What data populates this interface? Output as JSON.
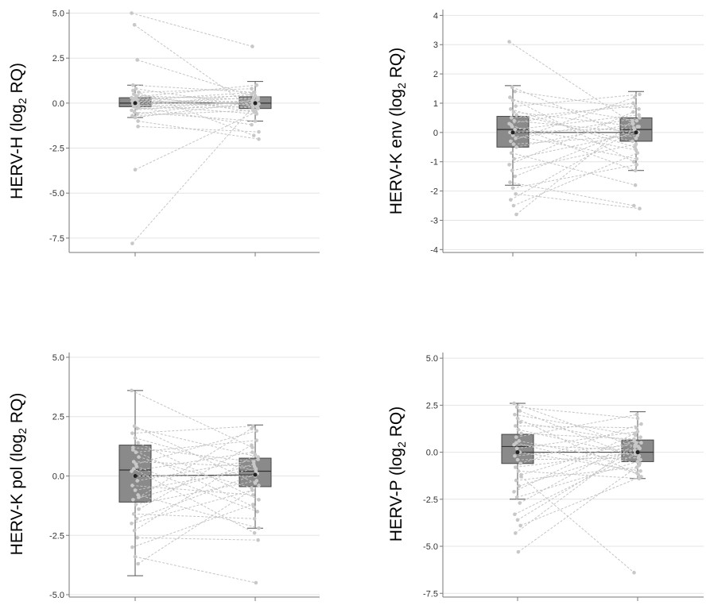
{
  "colors": {
    "box_fill": "#8a8a8a",
    "box_stroke": "#444444",
    "point": "#c8c8c8",
    "line": "#c4c4c4",
    "whisker": "#555555",
    "grid": "#e4e4e4",
    "axis": "#777777"
  },
  "chart_data": [
    {
      "type": "box",
      "ylabel": {
        "main": "HERV-H (log",
        "sub": "2",
        "tail": " RQ)"
      },
      "ylim": [
        -8.3,
        5.2
      ],
      "yticks": [
        5.0,
        2.5,
        0.0,
        -2.5,
        -5.0,
        -7.5
      ],
      "tick_labels": [
        "5.0",
        "2.5",
        "0.0",
        "-2.5",
        "-5.0",
        "-7.5"
      ],
      "groups": [
        {
          "q1": -0.2,
          "median": 0.0,
          "q3": 0.3,
          "wlo": -0.8,
          "whi": 1.0,
          "mean": 0.0
        },
        {
          "q1": -0.3,
          "median": 0.0,
          "q3": 0.35,
          "wlo": -1.0,
          "whi": 1.2,
          "mean": 0.0
        }
      ],
      "pairs": [
        [
          5.0,
          3.15
        ],
        [
          4.35,
          -0.4
        ],
        [
          2.4,
          0.3
        ],
        [
          -7.8,
          -0.2
        ],
        [
          -3.7,
          -0.5
        ],
        [
          -1.3,
          -1.6
        ],
        [
          1.0,
          0.6
        ],
        [
          0.8,
          -0.2
        ],
        [
          0.6,
          0.8
        ],
        [
          0.5,
          -0.5
        ],
        [
          0.4,
          0.2
        ],
        [
          0.3,
          -0.1
        ],
        [
          0.25,
          0.4
        ],
        [
          0.2,
          -0.3
        ],
        [
          0.1,
          0.0
        ],
        [
          0.05,
          0.1
        ],
        [
          0.0,
          -0.05
        ],
        [
          -0.05,
          0.3
        ],
        [
          -0.1,
          -0.6
        ],
        [
          -0.15,
          0.5
        ],
        [
          -0.2,
          0.05
        ],
        [
          -0.3,
          -0.2
        ],
        [
          -0.4,
          0.15
        ],
        [
          -0.5,
          -1.0
        ],
        [
          -0.6,
          0.2
        ],
        [
          -0.7,
          -0.4
        ],
        [
          -0.8,
          0.05
        ],
        [
          -1.0,
          -2.0
        ],
        [
          0.7,
          -1.8
        ],
        [
          0.35,
          1.0
        ],
        [
          -0.25,
          -1.2
        ],
        [
          0.15,
          0.6
        ]
      ]
    },
    {
      "type": "box",
      "ylabel": {
        "main": "HERV-K env (log",
        "sub": "2",
        "tail": " RQ)"
      },
      "ylim": [
        -4.1,
        4.2
      ],
      "yticks": [
        4,
        3,
        2,
        1,
        0,
        -1,
        -2,
        -3,
        -4
      ],
      "tick_labels": [
        "4",
        "3",
        "2",
        "1",
        "0",
        "-1",
        "-2",
        "-3",
        "-4"
      ],
      "groups": [
        {
          "q1": -0.5,
          "median": 0.1,
          "q3": 0.55,
          "wlo": -1.8,
          "whi": 1.6,
          "mean": 0.0
        },
        {
          "q1": -0.3,
          "median": 0.1,
          "q3": 0.5,
          "wlo": -1.3,
          "whi": 1.4,
          "mean": 0.0
        }
      ],
      "pairs": [
        [
          3.1,
          0.3
        ],
        [
          1.55,
          -0.2
        ],
        [
          1.4,
          0.8
        ],
        [
          1.2,
          -1.0
        ],
        [
          1.1,
          0.4
        ],
        [
          0.9,
          1.3
        ],
        [
          0.8,
          -0.5
        ],
        [
          0.7,
          0.2
        ],
        [
          0.6,
          -0.3
        ],
        [
          0.5,
          0.9
        ],
        [
          0.4,
          0.0
        ],
        [
          0.3,
          1.0
        ],
        [
          0.2,
          -0.6
        ],
        [
          0.1,
          0.6
        ],
        [
          0.0,
          0.15
        ],
        [
          -0.1,
          -0.9
        ],
        [
          -0.2,
          0.5
        ],
        [
          -0.3,
          1.2
        ],
        [
          -0.4,
          -0.1
        ],
        [
          -0.5,
          0.3
        ],
        [
          -0.7,
          -1.8
        ],
        [
          -0.9,
          0.0
        ],
        [
          -1.1,
          0.7
        ],
        [
          -1.3,
          -0.4
        ],
        [
          -1.5,
          0.2
        ],
        [
          -1.7,
          -2.5
        ],
        [
          -1.9,
          -1.1
        ],
        [
          -2.1,
          -2.6
        ],
        [
          -2.3,
          0.1
        ],
        [
          -2.5,
          -0.7
        ],
        [
          -2.8,
          0.4
        ],
        [
          0.25,
          -1.3
        ]
      ]
    },
    {
      "type": "box",
      "ylabel": {
        "main": "HERV-K pol (log",
        "sub": "2",
        "tail": " RQ)"
      },
      "ylim": [
        -5.1,
        5.2
      ],
      "yticks": [
        5.0,
        2.5,
        0.0,
        -2.5,
        -5.0
      ],
      "tick_labels": [
        "5.0",
        "2.5",
        "0.0",
        "-2.5",
        "-5.0"
      ],
      "groups": [
        {
          "q1": -1.1,
          "median": 0.25,
          "q3": 1.3,
          "wlo": -4.2,
          "whi": 3.6,
          "mean": 0.0
        },
        {
          "q1": -0.45,
          "median": 0.2,
          "q3": 0.75,
          "wlo": -2.2,
          "whi": 2.15,
          "mean": 0.05
        }
      ],
      "pairs": [
        [
          3.6,
          1.2
        ],
        [
          2.1,
          -0.3
        ],
        [
          2.0,
          0.8
        ],
        [
          1.8,
          2.1
        ],
        [
          1.6,
          0.2
        ],
        [
          1.4,
          -1.0
        ],
        [
          1.2,
          0.6
        ],
        [
          1.0,
          1.5
        ],
        [
          0.8,
          -0.5
        ],
        [
          0.6,
          0.4
        ],
        [
          0.4,
          -1.5
        ],
        [
          0.2,
          1.0
        ],
        [
          0.0,
          0.0
        ],
        [
          -0.2,
          0.7
        ],
        [
          -0.4,
          -0.8
        ],
        [
          -0.6,
          0.3
        ],
        [
          -0.8,
          -2.2
        ],
        [
          -1.0,
          0.5
        ],
        [
          -1.2,
          -0.2
        ],
        [
          -1.4,
          1.3
        ],
        [
          -1.6,
          -1.8
        ],
        [
          -1.8,
          0.1
        ],
        [
          -2.0,
          -0.6
        ],
        [
          -2.3,
          0.9
        ],
        [
          -2.6,
          -2.7
        ],
        [
          -3.0,
          -1.2
        ],
        [
          -3.4,
          -4.5
        ],
        [
          -3.7,
          -0.4
        ],
        [
          1.1,
          -1.3
        ],
        [
          0.5,
          1.9
        ],
        [
          -0.9,
          2.0
        ],
        [
          0.3,
          -2.4
        ]
      ]
    },
    {
      "type": "box",
      "ylabel": {
        "main": "HERV-P (log",
        "sub": "2",
        "tail": " RQ)"
      },
      "ylim": [
        -7.7,
        5.3
      ],
      "yticks": [
        5.0,
        2.5,
        0.0,
        -2.5,
        -5.0,
        -7.5
      ],
      "tick_labels": [
        "5.0",
        "2.5",
        "0.0",
        "-2.5",
        "-5.0",
        "-7.5"
      ],
      "groups": [
        {
          "q1": -0.6,
          "median": 0.3,
          "q3": 0.95,
          "wlo": -2.5,
          "whi": 2.6,
          "mean": 0.0
        },
        {
          "q1": -0.5,
          "median": 0.0,
          "q3": 0.65,
          "wlo": -1.4,
          "whi": 2.15,
          "mean": 0.0
        }
      ],
      "pairs": [
        [
          2.6,
          0.3
        ],
        [
          2.4,
          1.8
        ],
        [
          2.2,
          -0.4
        ],
        [
          2.0,
          0.9
        ],
        [
          1.8,
          -1.2
        ],
        [
          1.6,
          0.5
        ],
        [
          1.4,
          1.3
        ],
        [
          1.2,
          -0.2
        ],
        [
          1.0,
          0.7
        ],
        [
          0.8,
          2.0
        ],
        [
          0.6,
          -0.6
        ],
        [
          0.4,
          0.1
        ],
        [
          0.2,
          1.1
        ],
        [
          0.0,
          -1.0
        ],
        [
          -0.2,
          0.4
        ],
        [
          -0.4,
          -0.3
        ],
        [
          -0.6,
          1.5
        ],
        [
          -0.8,
          0.0
        ],
        [
          -1.0,
          -1.4
        ],
        [
          -1.2,
          0.6
        ],
        [
          -1.5,
          -0.8
        ],
        [
          -1.8,
          0.2
        ],
        [
          -2.1,
          1.0
        ],
        [
          -2.4,
          -0.5
        ],
        [
          -2.7,
          0.8
        ],
        [
          -3.3,
          -0.1
        ],
        [
          -3.6,
          0.3
        ],
        [
          -3.9,
          -1.3
        ],
        [
          -4.3,
          0.5
        ],
        [
          -5.3,
          -0.7
        ],
        [
          -1.3,
          -6.4
        ],
        [
          0.5,
          -1.1
        ]
      ]
    }
  ]
}
